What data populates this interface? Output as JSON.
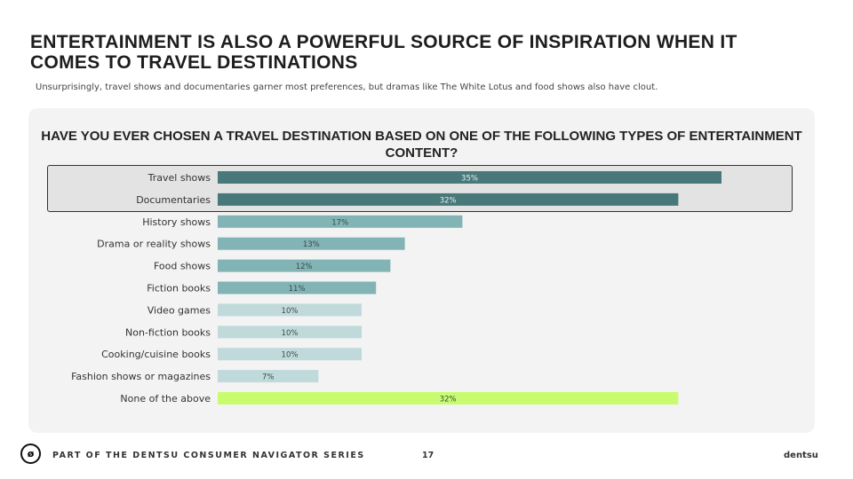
{
  "header": {
    "title": "ENTERTAINMENT IS ALSO A POWERFUL SOURCE OF INSPIRATION WHEN IT COMES TO TRAVEL DESTINATIONS",
    "subtitle": "Unsurprisingly, travel shows and documentaries garner most preferences, but dramas like The White Lotus and food shows also have clout."
  },
  "chart_data": {
    "type": "bar",
    "orientation": "horizontal",
    "title": "HAVE YOU EVER CHOSEN A TRAVEL DESTINATION BASED ON ONE OF THE FOLLOWING TYPES OF ENTERTAINMENT CONTENT?",
    "categories": [
      "Travel shows",
      "Documentaries",
      "History shows",
      "Drama or reality shows",
      "Food shows",
      "Fiction books",
      "Video games",
      "Non-fiction books",
      "Cooking/cuisine books",
      "Fashion shows or magazines",
      "None of the above"
    ],
    "values": [
      35,
      32,
      17,
      13,
      12,
      11,
      10,
      10,
      10,
      7,
      32
    ],
    "labels": [
      "35%",
      "32%",
      "17%",
      "13%",
      "12%",
      "11%",
      "10%",
      "10%",
      "10%",
      "7%",
      "32%"
    ],
    "colors": [
      "#48787a",
      "#48787a",
      "#82b3b5",
      "#82b3b5",
      "#82b3b5",
      "#82b3b5",
      "#c0dadb",
      "#c0dadb",
      "#c0dadb",
      "#c0dadb",
      "#c8fc6e"
    ],
    "label_colors": [
      "#e8f0f0",
      "#e8f0f0",
      "#3a4a4a",
      "#3a4a4a",
      "#3a4a4a",
      "#3a4a4a",
      "#3a4a4a",
      "#3a4a4a",
      "#3a4a4a",
      "#3a4a4a",
      "#3a4a4a"
    ],
    "highlighted": [
      "Travel shows",
      "Documentaries"
    ],
    "xlim": [
      0,
      35
    ]
  },
  "footer": {
    "series": "PART OF THE DENTSU CONSUMER NAVIGATOR SERIES",
    "page": "17",
    "brand": "dentsu"
  }
}
